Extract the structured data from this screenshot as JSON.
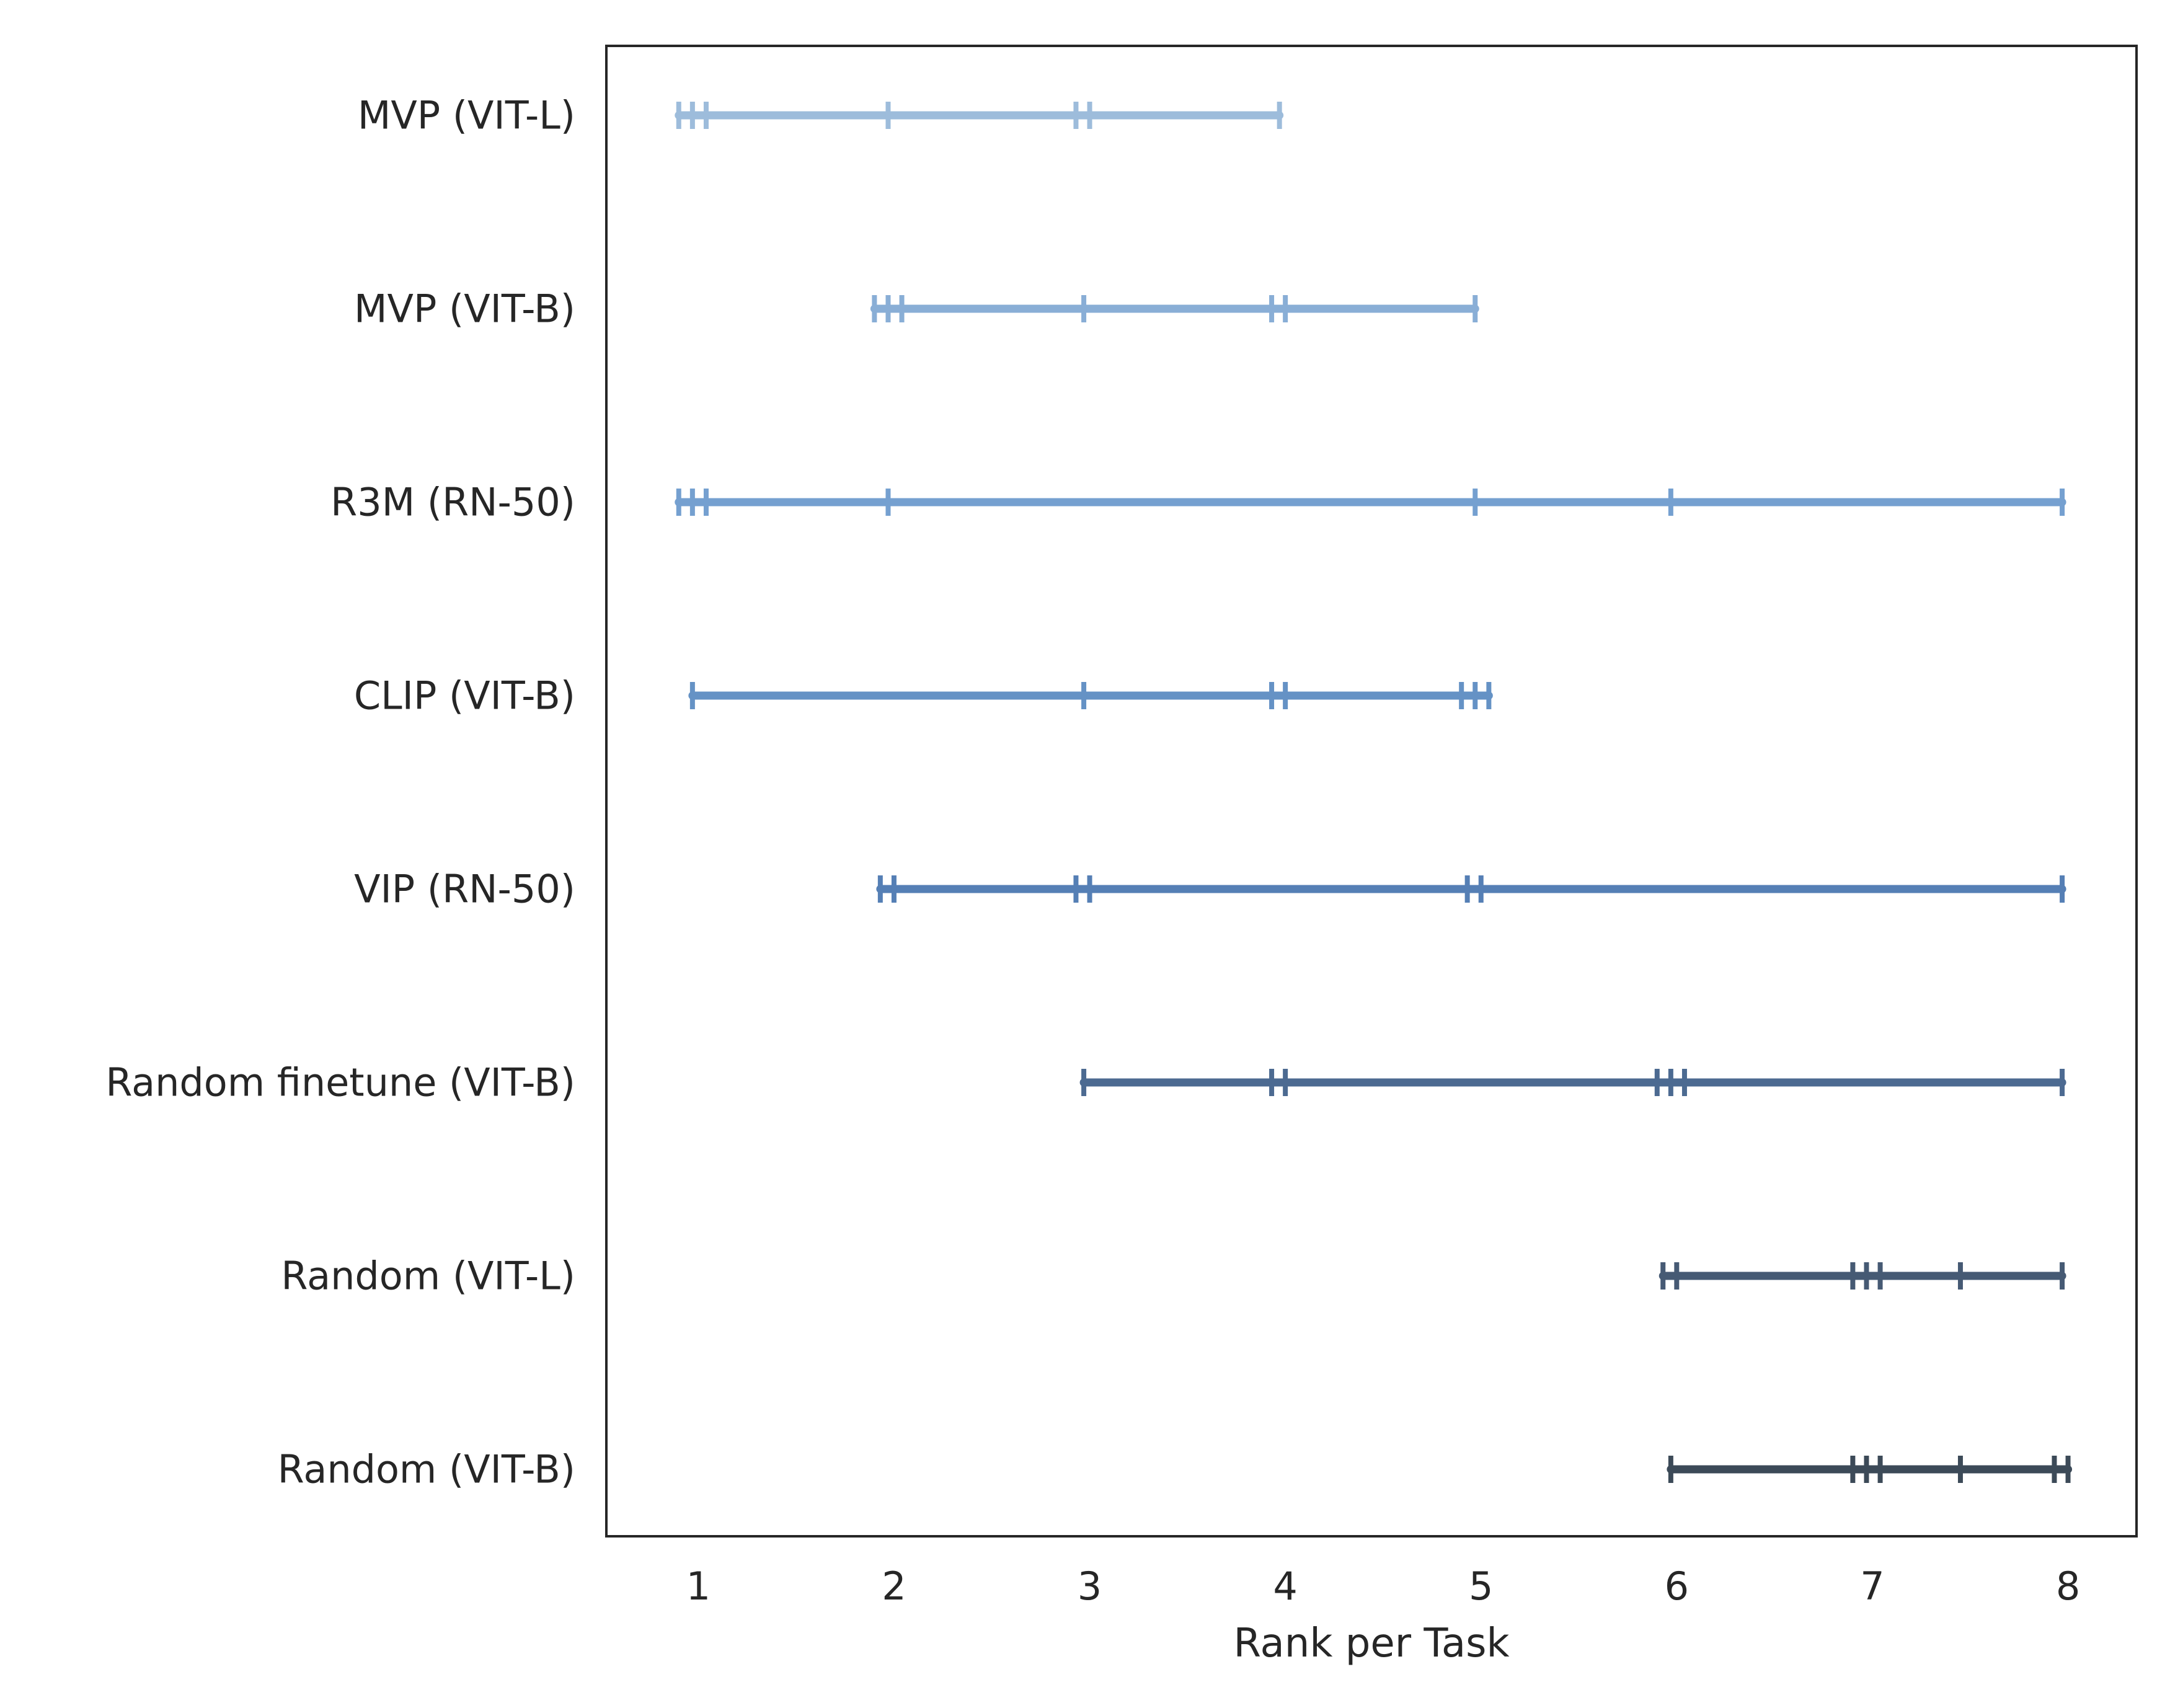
{
  "chart_data": {
    "type": "scatter",
    "title": "",
    "xlabel": "Rank per Task",
    "ylabel": "",
    "xlim": [
      0.53,
      8.35
    ],
    "xticks": [
      1,
      2,
      3,
      4,
      5,
      6,
      7,
      8
    ],
    "grid": false,
    "legend": "none",
    "series": [
      {
        "name": "MVP (VIT-L)",
        "color": "#9dbcdb",
        "ranks": [
          0.9,
          0.97,
          1.04,
          1.97,
          2.93,
          3.0,
          3.97
        ],
        "range": [
          0.9,
          3.97
        ]
      },
      {
        "name": "MVP (VIT-B)",
        "color": "#89aed6",
        "ranks": [
          1.9,
          1.97,
          2.04,
          2.97,
          3.93,
          4.0,
          4.97
        ],
        "range": [
          1.9,
          4.97
        ]
      },
      {
        "name": "R3M (RN-50)",
        "color": "#75a0d0",
        "ranks": [
          0.9,
          0.97,
          1.04,
          1.97,
          4.97,
          5.97,
          7.97
        ],
        "range": [
          0.9,
          7.97
        ]
      },
      {
        "name": "CLIP (VIT-B)",
        "color": "#6592c5",
        "ranks": [
          0.97,
          2.97,
          3.93,
          4.0,
          4.9,
          4.97,
          5.04
        ],
        "range": [
          0.97,
          5.04
        ]
      },
      {
        "name": "VIP (RN-50)",
        "color": "#557fb5",
        "ranks": [
          1.93,
          2.0,
          2.93,
          3.0,
          4.93,
          5.0,
          7.97
        ],
        "range": [
          1.93,
          7.97
        ]
      },
      {
        "name": "Random finetune (VIT-B)",
        "color": "#4c6a91",
        "ranks": [
          2.97,
          3.93,
          4.0,
          5.9,
          5.97,
          6.04,
          7.97
        ],
        "range": [
          2.97,
          7.97
        ]
      },
      {
        "name": "Random (VIT-L)",
        "color": "#465a74",
        "ranks": [
          5.93,
          6.0,
          6.9,
          6.97,
          7.04,
          7.45,
          7.97
        ],
        "range": [
          5.93,
          7.97
        ]
      },
      {
        "name": "Random (VIT-B)",
        "color": "#3c4a58",
        "ranks": [
          5.97,
          6.9,
          6.97,
          7.04,
          7.45,
          7.93,
          8.0
        ],
        "range": [
          5.97,
          8.0
        ]
      }
    ]
  }
}
